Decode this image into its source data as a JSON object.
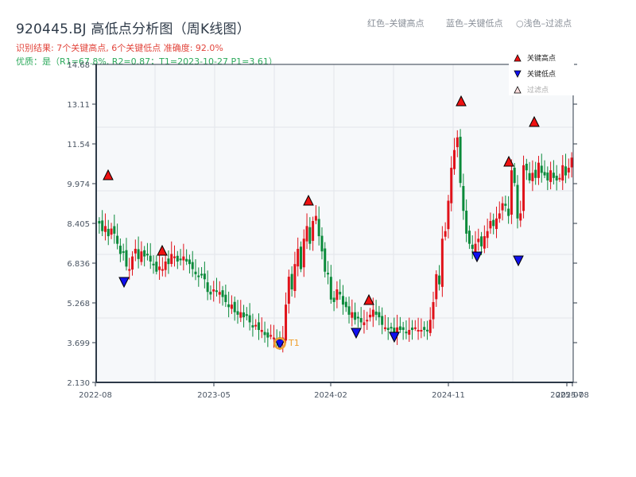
{
  "header": {
    "title": "920445.BJ 高低点分析图（周K线图）",
    "result": "识别结果: 7个关键高点, 6个关键低点  准确度: 92.0%",
    "quality": "优质：是（R1=67.8%, R2=0.87；T1=2023-10-27 P1=3.61）"
  },
  "hints": {
    "red": "红色–关键高点",
    "blue": "蓝色–关键低点",
    "light": "○浅色–过滤点"
  },
  "legend": {
    "high": "关键高点",
    "low": "关键低点",
    "filtered": "过滤点"
  },
  "colors": {
    "up": "#e0121a",
    "down": "#0a8a3a",
    "high_marker": "#ee1111",
    "low_marker": "#1010ee",
    "t1_ring": "#f0a030",
    "axis": "#2e3a48",
    "grid": "#e2e5ea",
    "plot_bg": "#f6f8fa"
  },
  "chart_data": {
    "type": "candlestick",
    "title": "920445.BJ 高低点分析图（周K线图）",
    "xlabel": "",
    "ylabel": "",
    "ylim": [
      2.13,
      14.68
    ],
    "yticks": [
      "2.130",
      "3.699",
      "5.268",
      "6.836",
      "8.405",
      "9.974",
      "11.54",
      "13.11",
      "14.68"
    ],
    "xticks": [
      "2022-08",
      "2023-05",
      "2024-02",
      "2024-11",
      "2025-07",
      "2025-08"
    ],
    "grid": true,
    "legend_position": "upper right",
    "key_highs": [
      {
        "date": "2022-09",
        "price": 10.2
      },
      {
        "date": "2022-12",
        "price": 7.3
      },
      {
        "date": "2023-12",
        "price": 9.1
      },
      {
        "date": "2024-04",
        "price": 5.3
      },
      {
        "date": "2024-11",
        "price": 13.2
      },
      {
        "date": "2025-02",
        "price": 10.7
      },
      {
        "date": "2025-04",
        "price": 12.3
      }
    ],
    "key_lows": [
      {
        "date": "2022-10",
        "price": 6.2
      },
      {
        "date": "2023-10",
        "price": 3.61
      },
      {
        "date": "2024-03",
        "price": 4.3
      },
      {
        "date": "2024-07",
        "price": 4.1
      },
      {
        "date": "2024-12",
        "price": 7.3
      },
      {
        "date": "2025-03",
        "price": 7.1
      }
    ],
    "t1": {
      "label": "T1",
      "date": "2023-10-27",
      "price": 3.61
    },
    "closes": [
      8.4,
      8.1,
      8.3,
      7.9,
      8.2,
      8.0,
      7.6,
      7.2,
      7.3,
      6.7,
      6.6,
      7.1,
      7.4,
      7.0,
      7.3,
      7.1,
      7.2,
      6.9,
      6.8,
      6.5,
      6.7,
      6.6,
      6.9,
      6.8,
      7.2,
      7.1,
      6.9,
      7.0,
      7.1,
      6.9,
      6.8,
      6.6,
      6.4,
      6.3,
      6.4,
      6.2,
      5.7,
      5.6,
      5.8,
      5.7,
      5.7,
      5.5,
      5.3,
      5.1,
      5.2,
      4.9,
      4.8,
      4.9,
      4.7,
      4.8,
      4.5,
      4.3,
      4.4,
      4.2,
      4.2,
      4.0,
      3.9,
      4.0,
      3.9,
      3.8,
      3.7,
      3.9,
      5.2,
      6.3,
      5.8,
      6.8,
      7.4,
      6.6,
      7.8,
      8.3,
      7.6,
      8.5,
      8.7,
      7.9,
      7.3,
      6.5,
      6.4,
      5.4,
      5.3,
      5.8,
      5.6,
      5.2,
      5.1,
      4.8,
      4.9,
      4.6,
      4.7,
      4.5,
      4.5,
      4.6,
      4.8,
      5.0,
      4.8,
      4.7,
      4.4,
      4.3,
      4.2,
      4.3,
      4.1,
      4.3,
      4.2,
      4.2,
      4.1,
      4.2,
      4.2,
      4.3,
      4.2,
      4.2,
      4.2,
      4.2,
      4.6,
      5.3,
      6.4,
      6.0,
      7.8,
      8.1,
      9.3,
      10.6,
      11.3,
      11.8,
      10.0,
      8.9,
      8.0,
      7.6,
      7.4,
      7.6,
      7.8,
      7.5,
      7.9,
      8.1,
      8.5,
      8.3,
      8.6,
      8.8,
      9.2,
      9.1,
      8.7,
      10.5,
      10.0,
      8.6,
      8.8,
      10.7,
      10.5,
      10.1,
      10.4,
      10.2,
      10.8,
      10.4,
      10.3,
      10.1,
      10.5,
      10.2,
      10.1,
      10.2,
      10.7,
      10.3,
      10.6,
      11.0
    ]
  }
}
